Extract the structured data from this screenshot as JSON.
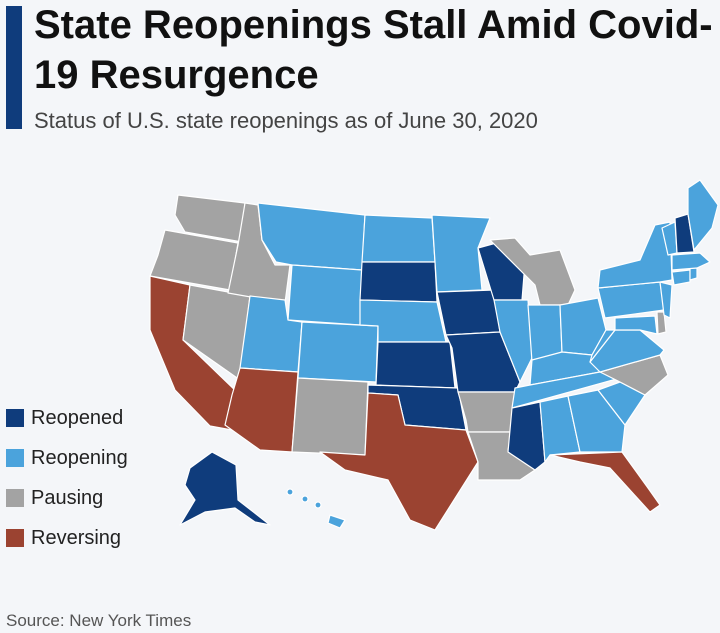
{
  "title": "State Reopenings Stall Amid Covid-19 Resurgence",
  "subtitle": "Status of U.S. state reopenings as of June 30, 2020",
  "source": "Source: New York Times",
  "legend": [
    {
      "label": "Reopened",
      "color": "#0f3c7c"
    },
    {
      "label": "Reopening",
      "color": "#4ba3dc"
    },
    {
      "label": "Pausing",
      "color": "#a3a3a3"
    },
    {
      "label": "Reversing",
      "color": "#9b4331"
    }
  ],
  "state_status": {
    "WA": "Pausing",
    "OR": "Pausing",
    "CA": "Reversing",
    "NV": "Pausing",
    "ID": "Pausing",
    "MT": "Reopening",
    "WY": "Reopening",
    "UT": "Reopening",
    "AZ": "Reversing",
    "CO": "Reopening",
    "NM": "Pausing",
    "ND": "Reopening",
    "SD": "Reopened",
    "NE": "Reopening",
    "KS": "Reopened",
    "OK": "Reopened",
    "TX": "Reversing",
    "MN": "Reopening",
    "IA": "Reopened",
    "MO": "Reopened",
    "AR": "Pausing",
    "LA": "Pausing",
    "WI": "Reopened",
    "IL": "Reopening",
    "MI": "Pausing",
    "IN": "Reopening",
    "OH": "Reopening",
    "KY": "Reopening",
    "TN": "Reopening",
    "MS": "Reopened",
    "AL": "Reopening",
    "GA": "Reopening",
    "FL": "Reversing",
    "SC": "Reopening",
    "NC": "Pausing",
    "VA": "Reopening",
    "WV": "Reopening",
    "MD": "Reopening",
    "DE": "Pausing",
    "PA": "Reopening",
    "NJ": "Reopening",
    "NY": "Reopening",
    "CT": "Reopening",
    "RI": "Reopening",
    "MA": "Reopening",
    "VT": "Reopening",
    "NH": "Reopened",
    "ME": "Reopening",
    "AK": "Reopened",
    "HI": "Reopening"
  }
}
